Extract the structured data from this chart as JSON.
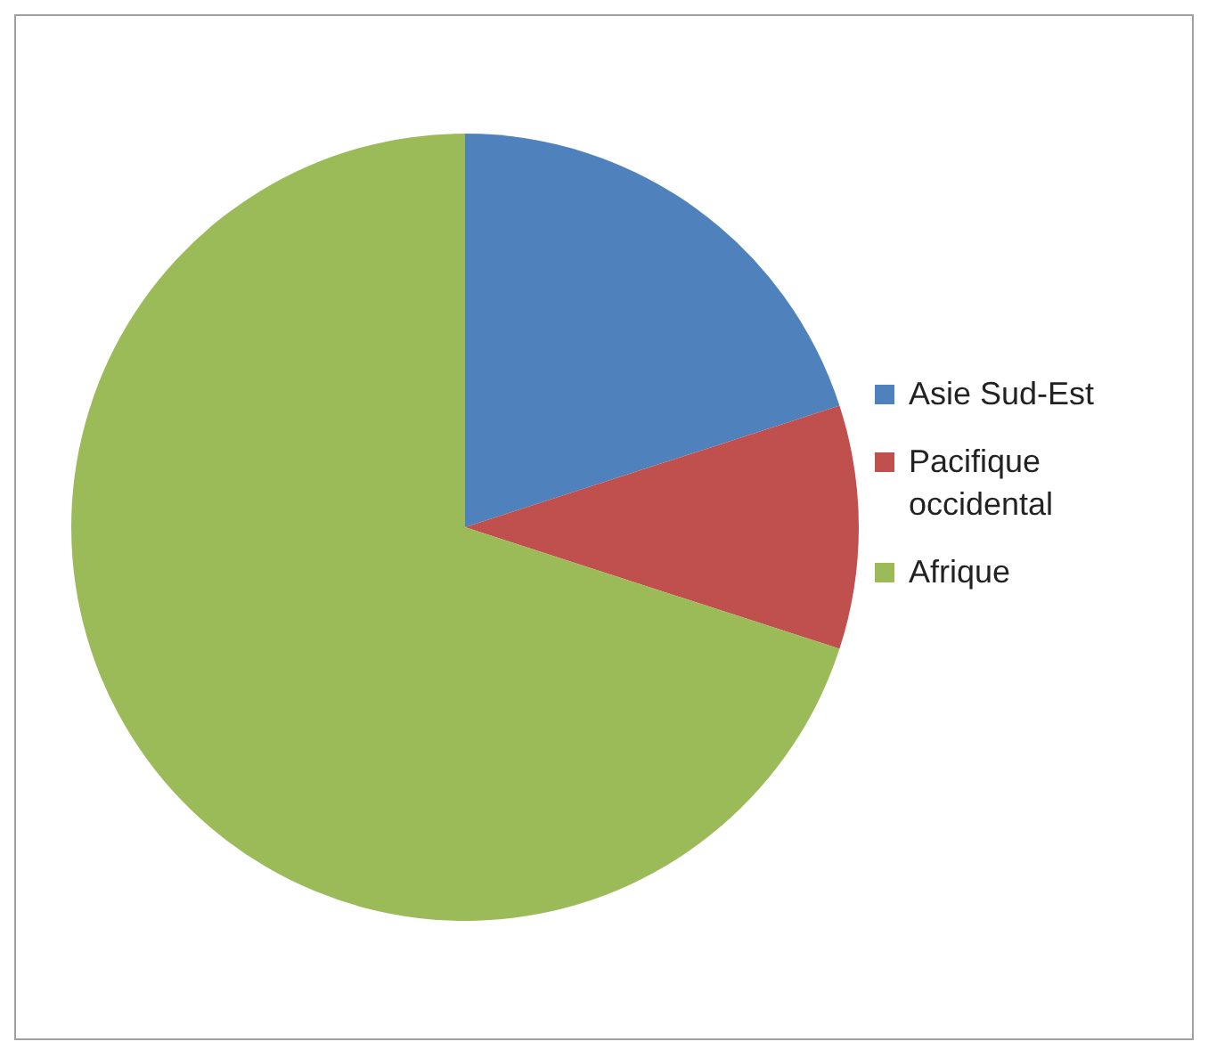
{
  "chart_data": {
    "type": "pie",
    "categories": [
      "Asie Sud-Est",
      "Pacifique occidental",
      "Afrique"
    ],
    "values": [
      20,
      10,
      70
    ],
    "colors": [
      "#4f81bd",
      "#c0504d",
      "#9bbb59"
    ],
    "legend": "right"
  }
}
